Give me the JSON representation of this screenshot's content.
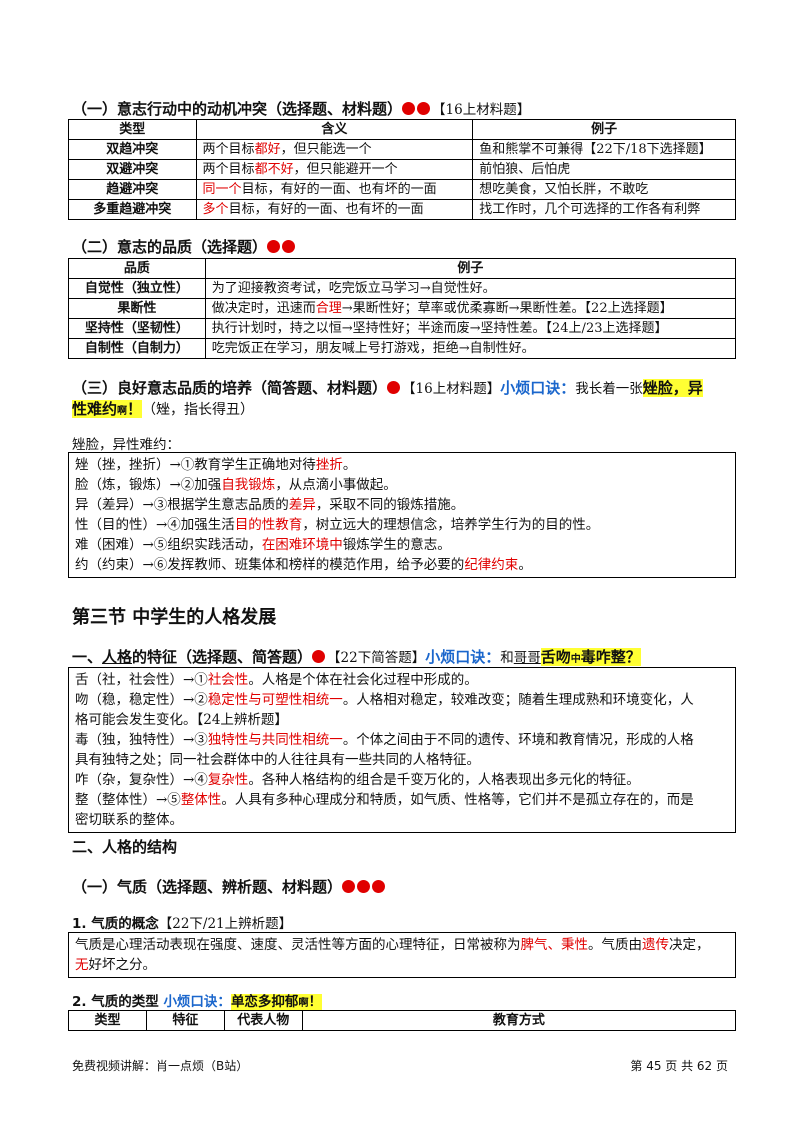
{
  "s1": {
    "title": "（一）意志行动中的动机冲突（选择题、材料题）",
    "tag": "【16上材料题】",
    "headers": [
      "类型",
      "含义",
      "例子"
    ],
    "rows": [
      {
        "type": "双趋冲突",
        "m1": "两个目标",
        "m2": "都好",
        "m3": "，但只能选一个",
        "ex": "鱼和熊掌不可兼得【22下/18下选择题】"
      },
      {
        "type": "双避冲突",
        "m1": "两个目标",
        "m2": "都不好",
        "m3": "，但只能避开一个",
        "ex": "前怕狼、后怕虎"
      },
      {
        "type": "趋避冲突",
        "m1": "",
        "m2": "同一个",
        "m3": "目标，有好的一面、也有坏的一面",
        "ex": "想吃美食，又怕长胖，不敢吃"
      },
      {
        "type": "多重趋避冲突",
        "m1": "",
        "m2": "多个",
        "m3": "目标，有好的一面、也有坏的一面",
        "ex": "找工作时，几个可选择的工作各有利弊"
      }
    ]
  },
  "s2": {
    "title": "（二）意志的品质（选择题）",
    "headers": [
      "品质",
      "例子"
    ],
    "rows": [
      {
        "q": "自觉性（独立性）",
        "e1": "为了迎接教资考试，吃完饭立马学习→自觉性好。",
        "e2": "",
        "e3": ""
      },
      {
        "q": "果断性",
        "e1": "做决定时，迅速而",
        "e2": "合理",
        "e3": "→果断性好；草率或优柔寡断→果断性差。【22上选择题】"
      },
      {
        "q": "坚持性（坚韧性）",
        "e1": "执行计划时，持之以恒→坚持性好；半途而废→坚持性差。【24上/23上选择题】",
        "e2": "",
        "e3": ""
      },
      {
        "q": "自制性（自制力）",
        "e1": "吃完饭正在学习，朋友喊上号打游戏，拒绝→自制性好。",
        "e2": "",
        "e3": ""
      }
    ]
  },
  "s3": {
    "title": "（三）良好意志品质的培养（简答题、材料题）",
    "tag": "【16上材料题】",
    "mn_label": "小烦口诀：",
    "mn_text": "我长着一张",
    "mn_hl1": "矬脸，异",
    "mn_hl2": "性难约",
    "mn_hl_small": "啊",
    "mn_hl3": "！",
    "mn_note": "（矬，指长得丑）",
    "sub": "矬脸，异性难约：",
    "lines": [
      {
        "a": "矬（挫，挫折）→①教育学生正确地对待",
        "r": "挫折",
        "b": "。"
      },
      {
        "a": "脸（炼，锻炼）→②加强",
        "r": "自我锻炼",
        "b": "，从点滴小事做起。"
      },
      {
        "a": "异（差异）→③根据学生意志品质的",
        "r": "差异",
        "b": "，采取不同的锻炼措施。"
      },
      {
        "a": "性（目的性）→④加强生活",
        "r": "目的性教育",
        "b": "，树立远大的理想信念，培养学生行为的目的性。"
      },
      {
        "a": "难（困难）→⑤组织实践活动，",
        "r": "在困难环境中",
        "b": "锻炼学生的意志。"
      },
      {
        "a": "约（约束）→⑥发挥教师、班集体和榜样的模范作用，给予必要的",
        "r": "纪律约束",
        "b": "。"
      }
    ]
  },
  "sec3": {
    "title": "第三节  中学生的人格发展"
  },
  "p1": {
    "t1": "一、",
    "t2": "人格",
    "t3": "的特征（选择题、简答题）",
    "tag": "【22下简答题】",
    "mn_label": "小烦口诀：",
    "mn_text1": "和",
    "mn_text2": "哥哥",
    "mn_hl1": "舌吻",
    "mn_hl_small": "中",
    "mn_hl2": "毒咋整？",
    "l1a": "舌（社，社会性）→①",
    "l1r": "社会性",
    "l1b": "。人格是个体在社会化过程中形成的。",
    "l2a": "吻（稳，稳定性）→②",
    "l2r": "稳定性与可塑性相统一",
    "l2b": "。人格相对稳定，较难改变；随着生理成熟和环境变化，人",
    "l2c": "格可能会发生变化。【24上辨析题】",
    "l3a": "毒（独，独特性）→③",
    "l3r": "独特性与共同性相统一",
    "l3b": "。个体之间由于不同的遗传、环境和教育情况，形成的人格",
    "l3c": "具有独特之处；同一社会群体中的人往往具有一些共同的人格特征。",
    "l4a": "咋（杂，复杂性）→④",
    "l4r": "复杂性",
    "l4b": "。各种人格结构的组合是千变万化的，人格表现出多元化的特征。",
    "l5a": "整（整体性）→⑤",
    "l5r": "整体性",
    "l5b": "。人具有多种心理成分和特质，如气质、性格等，它们并不是孤立存在的，而是",
    "l5c": "密切联系的整体。"
  },
  "p2": {
    "title": "二、人格的结构"
  },
  "q1": {
    "title": "（一）气质（选择题、辨析题、材料题）"
  },
  "q1c": {
    "title": "1. 气质的概念",
    "tag": "【22下/21上辨析题】",
    "a": "气质是心理活动表现在强度、速度、灵活性等方面的心理特征，日常被称为",
    "r1": "脾气、秉性",
    "b": "。气质由",
    "r2": "遗传",
    "c": "决定，",
    "r3": "无",
    "d": "好坏之分。"
  },
  "q1t": {
    "title": "2. 气质的类型",
    "mn_label": "小烦口诀：",
    "mn_hl": "单恋多抑郁",
    "mn_hl_small": "啊",
    "mn_hl2": "！",
    "headers": [
      "类型",
      "特征",
      "代表人物",
      "教育方式"
    ]
  },
  "footer": {
    "left": "免费视频讲解：肖一点烦（B站）",
    "right": "第 45 页 共 62 页"
  }
}
